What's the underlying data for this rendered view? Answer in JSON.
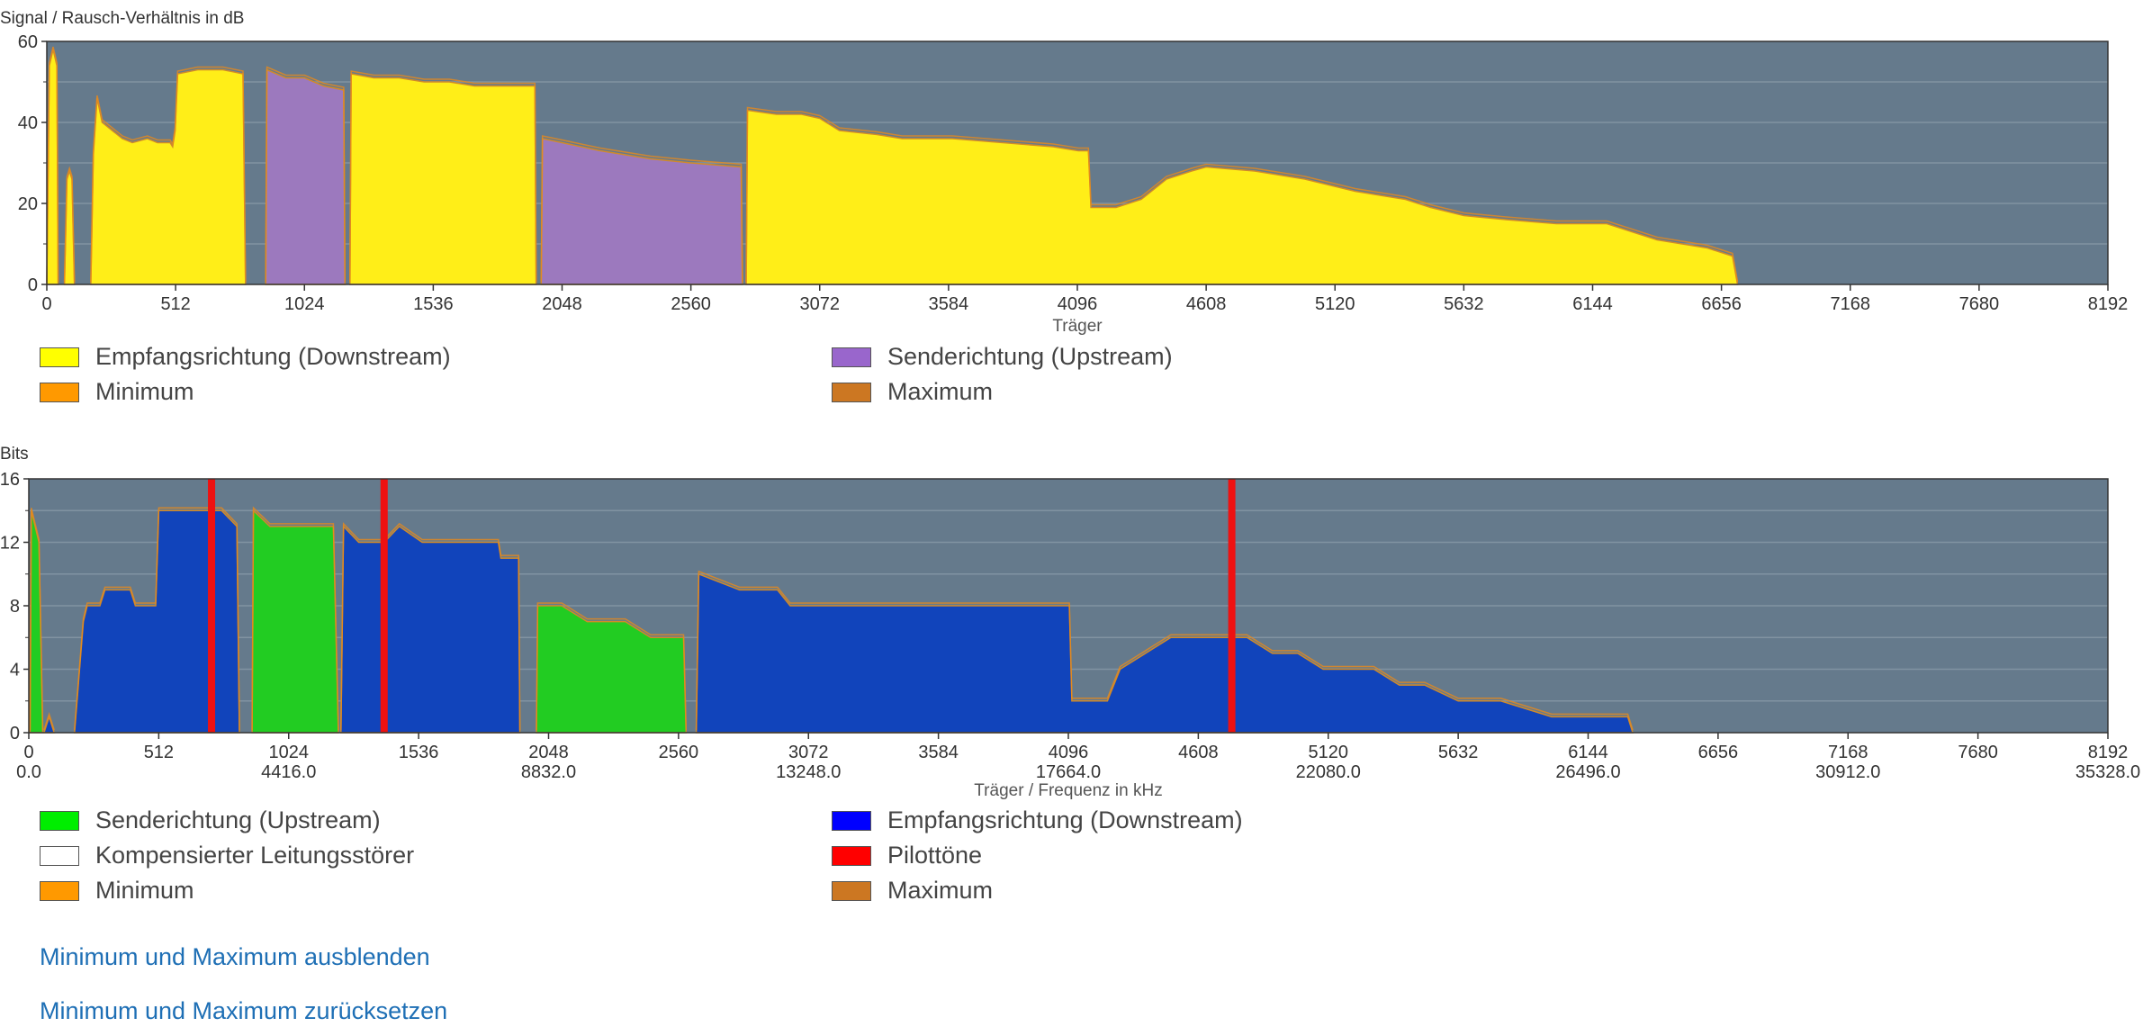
{
  "snr_chart": {
    "ylabel": "Signal / Rausch-Verhältnis in dB",
    "xlabel": "Träger",
    "legend": [
      {
        "label": "Empfangsrichtung (Downstream)",
        "color": "#ffff00"
      },
      {
        "label": "Senderichtung (Upstream)",
        "color": "#9966cc"
      },
      {
        "label": "Minimum",
        "color": "#ff9900"
      },
      {
        "label": "Maximum",
        "color": "#cc7722"
      }
    ]
  },
  "bits_chart": {
    "ylabel": "Bits",
    "xlabel": "Träger / Frequenz in kHz",
    "legend": [
      {
        "label": "Senderichtung (Upstream)",
        "color": "#00ee00"
      },
      {
        "label": "Empfangsrichtung (Downstream)",
        "color": "#0000ff"
      },
      {
        "label": "Kompensierter Leitungsstörer",
        "color": "#ffffff"
      },
      {
        "label": "Pilottöne",
        "color": "#ff0000"
      },
      {
        "label": "Minimum",
        "color": "#ff9900"
      },
      {
        "label": "Maximum",
        "color": "#cc7722"
      }
    ]
  },
  "links": {
    "hide_minmax": "Minimum und Maximum ausblenden",
    "reset_minmax": "Minimum und Maximum zurücksetzen"
  },
  "chart_data": [
    {
      "type": "area",
      "ylabel": "Signal / Rausch-Verhältnis in dB",
      "xlabel": "Träger",
      "xlim": [
        0,
        8192
      ],
      "ylim": [
        0,
        60
      ],
      "x_ticks": [
        0,
        512,
        1024,
        1536,
        2048,
        2560,
        3072,
        3584,
        4096,
        4608,
        5120,
        5632,
        6144,
        6656,
        7168,
        7680,
        8192
      ],
      "y_ticks": [
        0,
        20,
        40,
        60
      ],
      "grid": true,
      "background": "#657a8c",
      "series": [
        {
          "name": "Empfangsrichtung (Downstream)",
          "color": "#ffee18",
          "segments": [
            [
              [
                0,
                0
              ],
              [
                10,
                54
              ],
              [
                25,
                58
              ],
              [
                40,
                54
              ],
              [
                45,
                0
              ]
            ],
            [
              [
                70,
                0
              ],
              [
                80,
                26
              ],
              [
                90,
                28
              ],
              [
                100,
                26
              ],
              [
                110,
                0
              ]
            ],
            [
              [
                175,
                0
              ],
              [
                185,
                32
              ],
              [
                200,
                46
              ],
              [
                220,
                40
              ],
              [
                260,
                38
              ],
              [
                300,
                36
              ],
              [
                340,
                35
              ],
              [
                400,
                36
              ],
              [
                440,
                35
              ],
              [
                490,
                35
              ],
              [
                500,
                34
              ],
              [
                510,
                38
              ],
              [
                520,
                52
              ],
              [
                600,
                53
              ],
              [
                700,
                53
              ],
              [
                780,
                52
              ],
              [
                790,
                0
              ]
            ],
            [
              [
                1205,
                0
              ],
              [
                1210,
                52
              ],
              [
                1300,
                51
              ],
              [
                1400,
                51
              ],
              [
                1500,
                50
              ],
              [
                1600,
                50
              ],
              [
                1700,
                49
              ],
              [
                1800,
                49
              ],
              [
                1940,
                49
              ],
              [
                1945,
                0
              ]
            ],
            [
              [
                2780,
                0
              ],
              [
                2785,
                43
              ],
              [
                2900,
                42
              ],
              [
                3000,
                42
              ],
              [
                3072,
                41
              ],
              [
                3150,
                38
              ],
              [
                3300,
                37
              ],
              [
                3400,
                36
              ],
              [
                3600,
                36
              ],
              [
                3800,
                35
              ],
              [
                4000,
                34
              ],
              [
                4100,
                33
              ],
              [
                4140,
                33
              ],
              [
                4150,
                19
              ],
              [
                4250,
                19
              ],
              [
                4350,
                21
              ],
              [
                4450,
                26
              ],
              [
                4550,
                28
              ],
              [
                4608,
                29
              ],
              [
                4800,
                28
              ],
              [
                5000,
                26
              ],
              [
                5200,
                23
              ],
              [
                5400,
                21
              ],
              [
                5500,
                19
              ],
              [
                5632,
                17
              ],
              [
                5800,
                16
              ],
              [
                6000,
                15
              ],
              [
                6200,
                15
              ],
              [
                6300,
                13
              ],
              [
                6400,
                11
              ],
              [
                6500,
                10
              ],
              [
                6600,
                9
              ],
              [
                6700,
                7
              ],
              [
                6720,
                0
              ]
            ]
          ]
        },
        {
          "name": "Senderichtung (Upstream)",
          "color": "#9c79be",
          "segments": [
            [
              [
                870,
                0
              ],
              [
                875,
                53
              ],
              [
                950,
                51
              ],
              [
                1024,
                51
              ],
              [
                1100,
                49
              ],
              [
                1180,
                48
              ],
              [
                1185,
                0
              ]
            ],
            [
              [
                1965,
                0
              ],
              [
                1970,
                36
              ],
              [
                2048,
                35
              ],
              [
                2200,
                33
              ],
              [
                2400,
                31
              ],
              [
                2560,
                30
              ],
              [
                2760,
                29
              ],
              [
                2765,
                0
              ]
            ]
          ]
        }
      ]
    },
    {
      "type": "area",
      "ylabel": "Bits",
      "xlabel": "Träger / Frequenz in kHz",
      "xlim": [
        0,
        8192
      ],
      "ylim": [
        0,
        16
      ],
      "x_ticks": [
        0,
        512,
        1024,
        1536,
        2048,
        2560,
        3072,
        3584,
        4096,
        4608,
        5120,
        5632,
        6144,
        6656,
        7168,
        7680,
        8192
      ],
      "x_ticks_khz": [
        {
          "carrier": 0,
          "khz": "0.0"
        },
        {
          "carrier": 1024,
          "khz": "4416.0"
        },
        {
          "carrier": 2048,
          "khz": "8832.0"
        },
        {
          "carrier": 3072,
          "khz": "13248.0"
        },
        {
          "carrier": 4096,
          "khz": "17664.0"
        },
        {
          "carrier": 5120,
          "khz": "22080.0"
        },
        {
          "carrier": 6144,
          "khz": "26496.0"
        },
        {
          "carrier": 7168,
          "khz": "30912.0"
        },
        {
          "carrier": 8192,
          "khz": "35328.0"
        }
      ],
      "y_ticks": [
        0,
        4,
        8,
        12,
        16
      ],
      "grid": true,
      "background": "#657a8c",
      "pilot_tones": [
        720,
        1400,
        4740
      ],
      "series": [
        {
          "name": "Senderichtung (Upstream)",
          "color": "#22cc22",
          "segments": [
            [
              [
                5,
                0
              ],
              [
                10,
                14
              ],
              [
                40,
                12
              ],
              [
                55,
                0
              ]
            ],
            [
              [
                880,
                0
              ],
              [
                885,
                14
              ],
              [
                950,
                13
              ],
              [
                1024,
                13
              ],
              [
                1100,
                13
              ],
              [
                1200,
                13
              ],
              [
                1220,
                0
              ]
            ],
            [
              [
                2000,
                0
              ],
              [
                2005,
                8
              ],
              [
                2100,
                8
              ],
              [
                2200,
                7
              ],
              [
                2350,
                7
              ],
              [
                2450,
                6
              ],
              [
                2580,
                6
              ],
              [
                2590,
                0
              ]
            ]
          ]
        },
        {
          "name": "Empfangsrichtung (Downstream)",
          "color": "#1144bb",
          "segments": [
            [
              [
                60,
                0
              ],
              [
                80,
                1
              ],
              [
                100,
                0
              ]
            ],
            [
              [
                180,
                0
              ],
              [
                200,
                4
              ],
              [
                215,
                7
              ],
              [
                230,
                8
              ],
              [
                280,
                8
              ],
              [
                300,
                9
              ],
              [
                400,
                9
              ],
              [
                420,
                8
              ],
              [
                500,
                8
              ],
              [
                512,
                14
              ],
              [
                700,
                14
              ],
              [
                760,
                14
              ],
              [
                820,
                13
              ],
              [
                830,
                0
              ]
            ],
            [
              [
                1230,
                0
              ],
              [
                1240,
                13
              ],
              [
                1300,
                12
              ],
              [
                1400,
                12
              ],
              [
                1460,
                13
              ],
              [
                1550,
                12
              ],
              [
                1700,
                12
              ],
              [
                1850,
                12
              ],
              [
                1860,
                11
              ],
              [
                1930,
                11
              ],
              [
                1935,
                0
              ]
            ],
            [
              [
                2630,
                0
              ],
              [
                2640,
                10
              ],
              [
                2800,
                9
              ],
              [
                2950,
                9
              ],
              [
                3000,
                8
              ],
              [
                3200,
                8
              ],
              [
                3400,
                8
              ],
              [
                3600,
                8
              ],
              [
                3800,
                8
              ],
              [
                4000,
                8
              ],
              [
                4096,
                8
              ],
              [
                4100,
                8
              ],
              [
                4110,
                2
              ],
              [
                4200,
                2
              ],
              [
                4250,
                2
              ],
              [
                4300,
                4
              ],
              [
                4400,
                5
              ],
              [
                4500,
                6
              ],
              [
                4608,
                6
              ],
              [
                4800,
                6
              ],
              [
                4900,
                5
              ],
              [
                5000,
                5
              ],
              [
                5100,
                4
              ],
              [
                5200,
                4
              ],
              [
                5300,
                4
              ],
              [
                5400,
                3
              ],
              [
                5500,
                3
              ],
              [
                5632,
                2
              ],
              [
                5800,
                2
              ],
              [
                6000,
                1
              ],
              [
                6200,
                1
              ],
              [
                6300,
                1
              ],
              [
                6320,
                0
              ]
            ]
          ]
        },
        {
          "name": "Minimum",
          "color": "#ff9900",
          "segments": []
        },
        {
          "name": "Maximum",
          "color": "#cc7722",
          "segments": []
        }
      ]
    }
  ]
}
